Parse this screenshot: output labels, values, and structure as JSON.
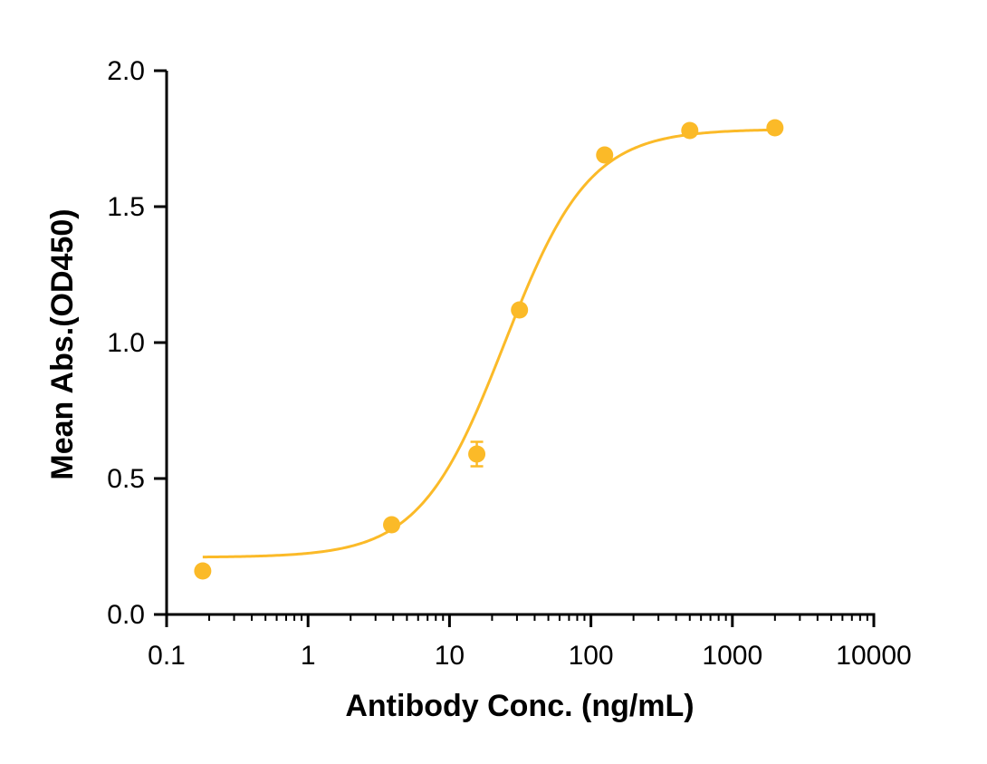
{
  "chart_data": {
    "type": "scatter",
    "title": "",
    "xlabel": "Antibody Conc. (ng/mL)",
    "ylabel": "Mean Abs.(OD450)",
    "x_scale": "log",
    "xlim": [
      0.1,
      10000
    ],
    "ylim": [
      0.0,
      2.0
    ],
    "x_ticks": [
      0.1,
      1,
      10,
      100,
      1000,
      10000
    ],
    "x_tick_labels": [
      "0.1",
      "1",
      "10",
      "100",
      "1000",
      "10000"
    ],
    "y_ticks": [
      0.0,
      0.5,
      1.0,
      1.5,
      2.0
    ],
    "y_tick_labels": [
      "0.0",
      "0.5",
      "1.0",
      "1.5",
      "2.0"
    ],
    "grid": false,
    "legend": "none",
    "color": "#FBBA28",
    "series": [
      {
        "x": [
          0.18,
          3.9,
          15.6,
          31.25,
          125,
          500,
          2000
        ],
        "y": [
          0.16,
          0.33,
          0.59,
          1.12,
          1.69,
          1.78,
          1.79
        ],
        "error": [
          0.0,
          0.0,
          0.045,
          0.0,
          0.0,
          0.0,
          0.0
        ]
      }
    ],
    "fit": {
      "model": "4PL",
      "bottom": 0.21,
      "top": 1.785,
      "ec50": 24.5,
      "hill": 1.45
    }
  }
}
